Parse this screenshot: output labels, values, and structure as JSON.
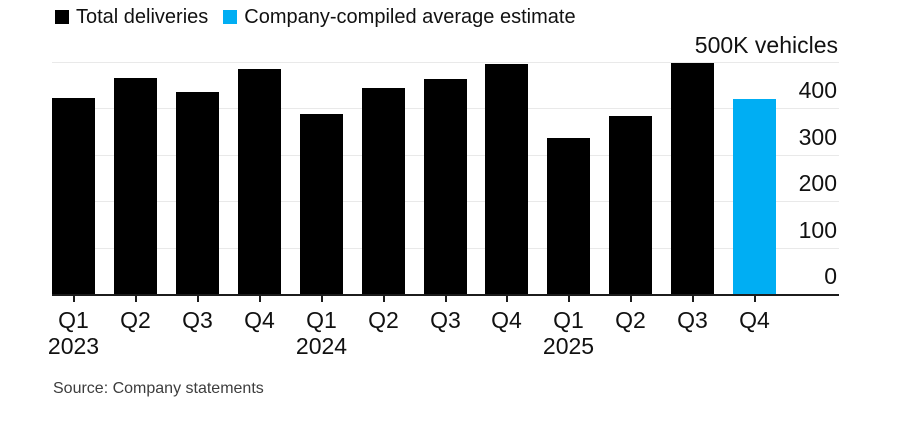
{
  "legend": {
    "items": [
      {
        "label": "Total deliveries",
        "color": "#000000"
      },
      {
        "label": "Company-compiled average estimate",
        "color": "#00aef3"
      }
    ]
  },
  "chart_data": {
    "type": "bar",
    "title": "",
    "top_axis_label": "500K vehicles",
    "unit": "K vehicles",
    "ylim": [
      0,
      500
    ],
    "y_ticks": [
      0,
      100,
      200,
      300,
      400,
      500
    ],
    "grid": "horizontal-light-gray",
    "legend_position": "top-left",
    "axis_labels_side": "right",
    "series": [
      {
        "name": "Total deliveries",
        "color": "#000000"
      },
      {
        "name": "Company-compiled average estimate",
        "color": "#00aef3"
      }
    ],
    "bars": [
      {
        "quarter": "Q1",
        "year": "2023",
        "value": 423,
        "series": 0
      },
      {
        "quarter": "Q2",
        "year": "",
        "value": 466,
        "series": 0
      },
      {
        "quarter": "Q3",
        "year": "",
        "value": 435,
        "series": 0
      },
      {
        "quarter": "Q4",
        "year": "",
        "value": 485,
        "series": 0
      },
      {
        "quarter": "Q1",
        "year": "2024",
        "value": 387,
        "series": 0
      },
      {
        "quarter": "Q2",
        "year": "",
        "value": 444,
        "series": 0
      },
      {
        "quarter": "Q3",
        "year": "",
        "value": 463,
        "series": 0
      },
      {
        "quarter": "Q4",
        "year": "",
        "value": 496,
        "series": 0
      },
      {
        "quarter": "Q1",
        "year": "2025",
        "value": 337,
        "series": 0
      },
      {
        "quarter": "Q2",
        "year": "",
        "value": 384,
        "series": 0
      },
      {
        "quarter": "Q3",
        "year": "",
        "value": 497,
        "series": 0
      },
      {
        "quarter": "Q4",
        "year": "",
        "value": 421,
        "series": 1
      }
    ]
  },
  "source": {
    "label": "Source: Company statements"
  }
}
